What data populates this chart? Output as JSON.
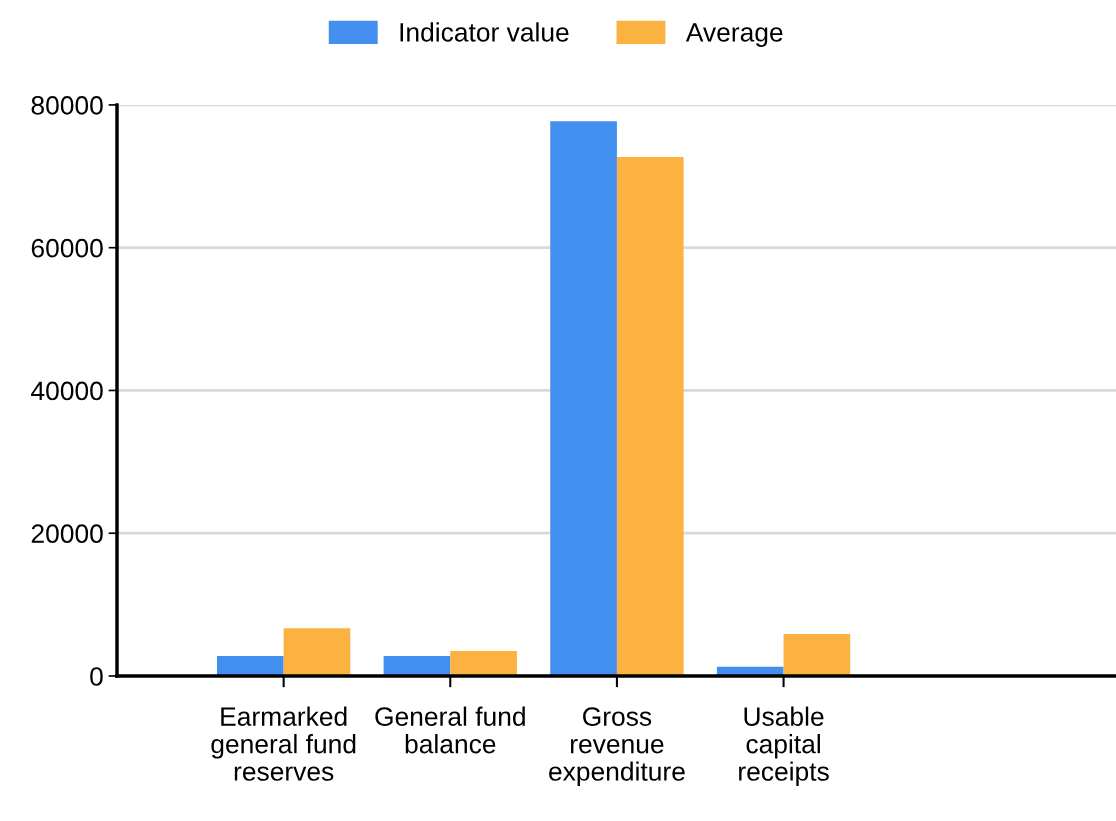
{
  "chart_data": {
    "type": "bar",
    "categories": [
      "Earmarked general fund reserves",
      "General fund balance",
      "Gross revenue expenditure",
      "Usable capital receipts"
    ],
    "series": [
      {
        "name": "Indicator value",
        "color": "#428ff0",
        "values": [
          2800,
          2800,
          77700,
          1300
        ]
      },
      {
        "name": "Average",
        "color": "#fbb241",
        "values": [
          6700,
          3500,
          72700,
          5900
        ]
      }
    ],
    "ylim": [
      0,
      80000
    ],
    "yticks": [
      0,
      20000,
      40000,
      60000,
      80000
    ],
    "grid": "y",
    "legend": "top"
  }
}
